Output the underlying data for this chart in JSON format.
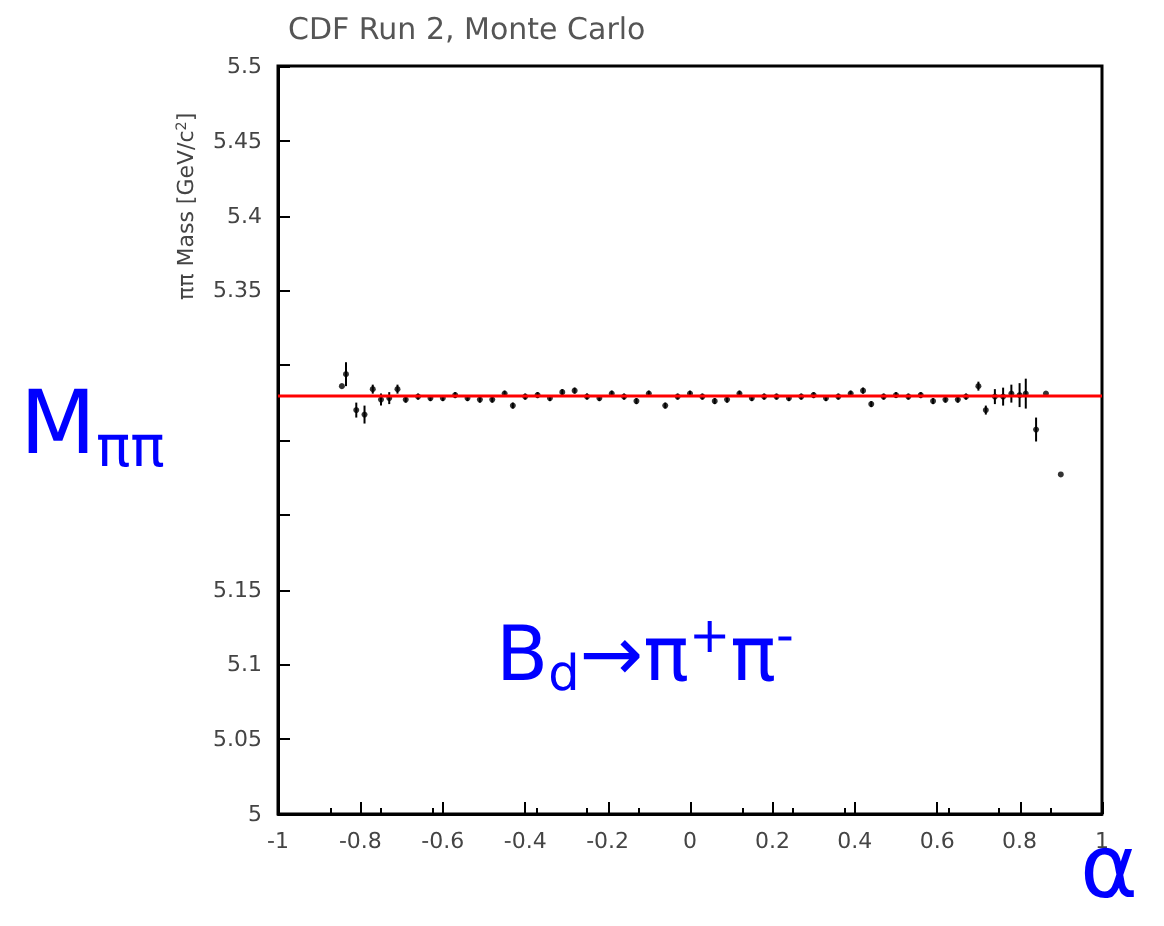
{
  "chart_data": {
    "type": "scatter",
    "title": "CDF Run 2, Monte Carlo",
    "ylabel": "ππ Mass [GeV/c$^{2}$]",
    "annotations": [
      "M$_{ππ}$",
      "B$_{d}$→π$^{+}$π$^{-}$",
      "α"
    ],
    "x": [
      -0.845,
      -0.835,
      -0.81,
      -0.79,
      -0.77,
      -0.75,
      -0.73,
      -0.71,
      -0.69,
      -0.66,
      -0.63,
      -0.6,
      -0.57,
      -0.54,
      -0.51,
      -0.48,
      -0.45,
      -0.43,
      -0.4,
      -0.37,
      -0.34,
      -0.31,
      -0.28,
      -0.25,
      -0.22,
      -0.19,
      -0.16,
      -0.13,
      -0.1,
      -0.06,
      -0.03,
      0.0,
      0.03,
      0.06,
      0.09,
      0.12,
      0.15,
      0.18,
      0.21,
      0.24,
      0.27,
      0.3,
      0.33,
      0.36,
      0.39,
      0.42,
      0.44,
      0.47,
      0.5,
      0.53,
      0.56,
      0.59,
      0.62,
      0.65,
      0.67,
      0.7,
      0.718,
      0.74,
      0.76,
      0.78,
      0.8,
      0.815,
      0.84,
      0.864,
      0.9
    ],
    "values": [
      5.286,
      5.294,
      5.27,
      5.267,
      5.284,
      5.277,
      5.278,
      5.284,
      5.277,
      5.279,
      5.278,
      5.278,
      5.28,
      5.278,
      5.277,
      5.277,
      5.281,
      5.273,
      5.279,
      5.28,
      5.278,
      5.282,
      5.283,
      5.279,
      5.278,
      5.281,
      5.279,
      5.276,
      5.281,
      5.273,
      5.279,
      5.281,
      5.279,
      5.276,
      5.277,
      5.281,
      5.278,
      5.279,
      5.279,
      5.278,
      5.279,
      5.28,
      5.278,
      5.279,
      5.281,
      5.283,
      5.274,
      5.279,
      5.28,
      5.279,
      5.28,
      5.276,
      5.277,
      5.277,
      5.279,
      5.286,
      5.27,
      5.279,
      5.279,
      5.281,
      5.28,
      5.281,
      5.257,
      5.281,
      5.227
    ],
    "errors": [
      null,
      0.008,
      0.005,
      0.006,
      0.003,
      0.004,
      0.004,
      0.003,
      0.002,
      0.002,
      0.002,
      0.002,
      0.002,
      0.002,
      0.002,
      0.002,
      0.002,
      0.002,
      0.002,
      0.002,
      0.002,
      0.002,
      0.002,
      0.002,
      0.002,
      0.002,
      0.002,
      0.002,
      0.002,
      0.002,
      0.002,
      0.002,
      0.002,
      0.002,
      0.002,
      0.002,
      0.002,
      0.002,
      0.002,
      0.002,
      0.002,
      0.002,
      0.002,
      0.002,
      0.002,
      0.002,
      0.002,
      0.002,
      0.002,
      0.002,
      0.002,
      0.002,
      0.002,
      0.002,
      0.002,
      0.003,
      0.003,
      0.005,
      0.006,
      0.006,
      0.008,
      0.01,
      0.008,
      null,
      null
    ],
    "color": "#000000",
    "marker": "circle",
    "xlim": [
      -1,
      1
    ],
    "xticks": [
      -1,
      -0.8,
      -0.6,
      -0.4,
      -0.2,
      0,
      0.2,
      0.4,
      0.6,
      0.8,
      1
    ],
    "ylim": [
      5,
      5.5
    ],
    "yticks": [
      5,
      5.05,
      5.1,
      5.15,
      {
        "value": 5.2,
        "label": null
      },
      {
        "value": 5.25,
        "label": null
      },
      {
        "value": 5.3,
        "label": null
      },
      5.35,
      5.4,
      5.45,
      5.5
    ],
    "ref_lines": [
      {
        "axis": "y",
        "value": 5.279,
        "label": null,
        "color": "#ff0000"
      }
    ],
    "grid": false
  }
}
